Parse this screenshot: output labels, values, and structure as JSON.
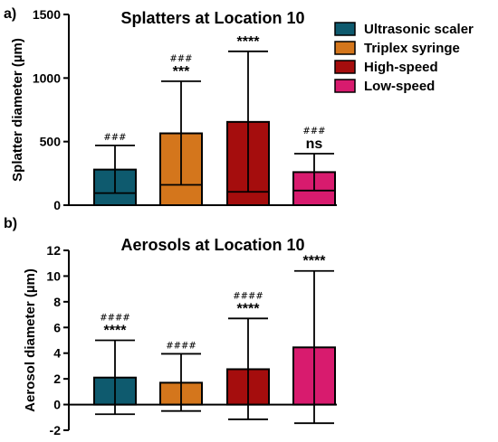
{
  "colors": {
    "Ultrasonic scaler": "#0e5a6e",
    "Triplex syringe": "#d4761c",
    "High-speed": "#a50d0d",
    "Low-speed": "#d81b6e"
  },
  "legend": [
    "Ultrasonic scaler",
    "Triplex syringe",
    "High-speed",
    "Low-speed"
  ],
  "chart_data": [
    {
      "type": "bar",
      "panel_label": "a)",
      "title": "Splatters at Location 10",
      "ylabel": "Splatter diameter (µm)",
      "ylim": [
        0,
        1500
      ],
      "yticks": [
        0,
        500,
        1000,
        1500
      ],
      "categories": [
        "Ultrasonic scaler",
        "Triplex syringe",
        "High-speed",
        "Low-speed"
      ],
      "values": [
        280,
        565,
        655,
        260
      ],
      "error_low": [
        95,
        160,
        105,
        115
      ],
      "error_high": [
        470,
        975,
        1210,
        405
      ],
      "hash_labels": [
        "###",
        "###",
        "",
        "###"
      ],
      "star_labels": [
        "",
        "***",
        "****",
        "ns"
      ]
    },
    {
      "type": "bar",
      "panel_label": "b)",
      "title": "Aerosols at Location 10",
      "ylabel": "Aerosol diameter (µm)",
      "ylim": [
        -2,
        12
      ],
      "yticks": [
        -2,
        0,
        2,
        4,
        6,
        8,
        10,
        12
      ],
      "categories": [
        "Ultrasonic scaler",
        "Triplex syringe",
        "High-speed",
        "Low-speed"
      ],
      "values": [
        2.1,
        1.7,
        2.75,
        4.45
      ],
      "error_low": [
        -0.75,
        -0.5,
        -1.15,
        -1.45
      ],
      "error_high": [
        5.0,
        3.95,
        6.7,
        10.4
      ],
      "hash_labels": [
        "####",
        "####",
        "####",
        ""
      ],
      "star_labels": [
        "****",
        "",
        "****",
        "****"
      ]
    }
  ]
}
